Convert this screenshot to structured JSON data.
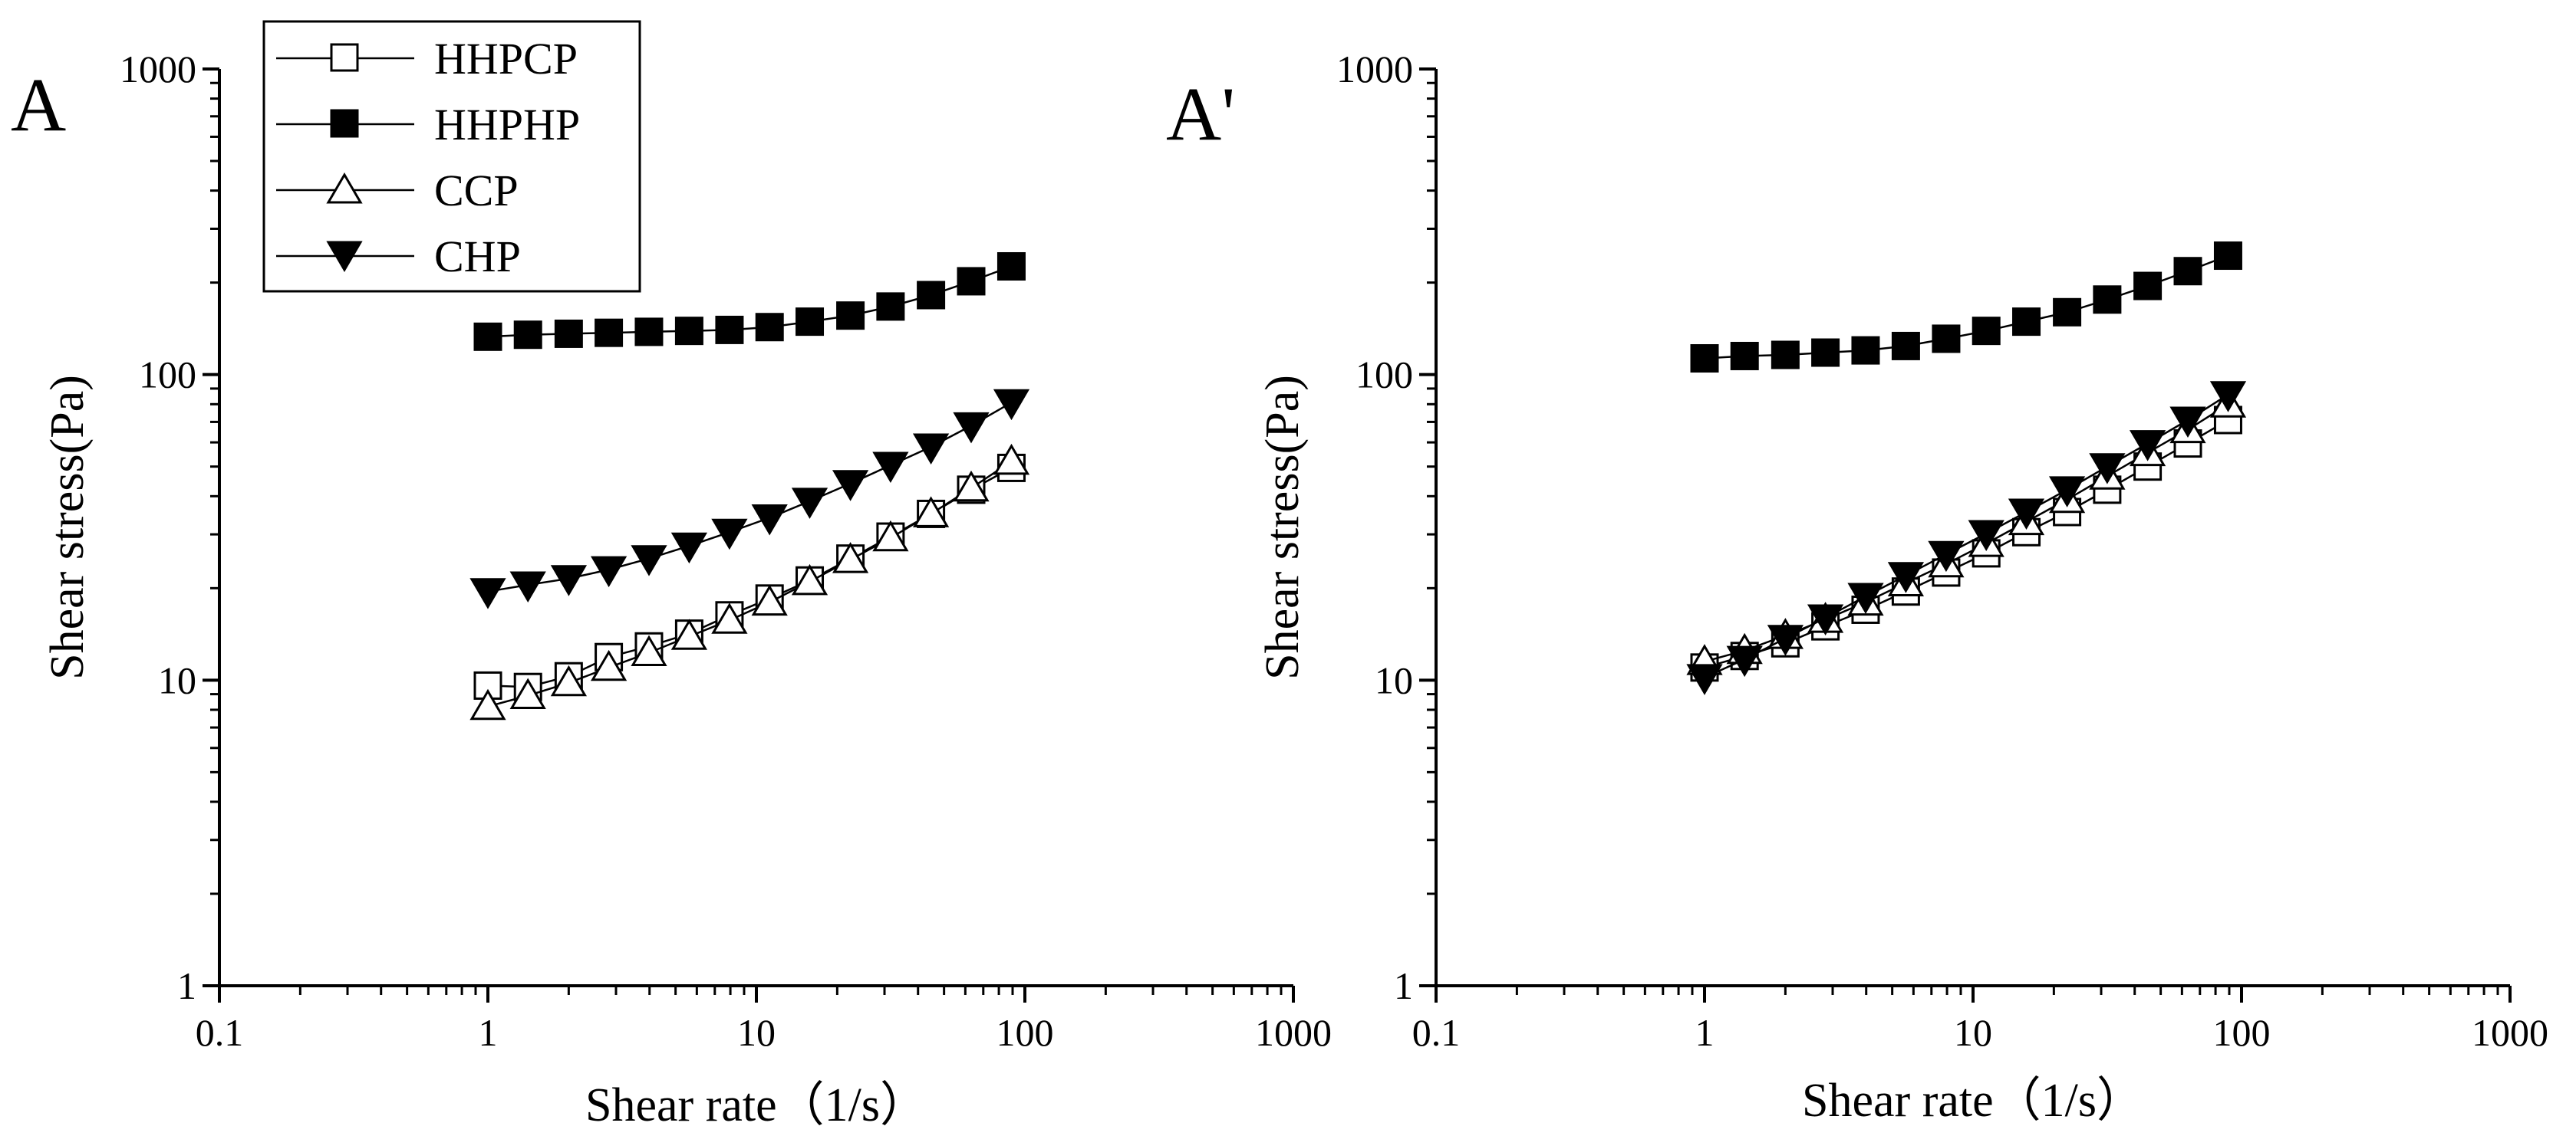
{
  "chart_data": [
    {
      "type": "scatter",
      "panel_label": "A",
      "xlabel": "Shear rate（1/s）",
      "ylabel": "Shear stress(Pa)",
      "xscale": "log",
      "yscale": "log",
      "xlim": [
        0.1,
        1000
      ],
      "ylim": [
        1,
        1000
      ],
      "xtick_labels": [
        "0.1",
        "1",
        "10",
        "100",
        "1000"
      ],
      "ytick_labels": [
        "1",
        "10",
        "100",
        "1000"
      ],
      "legend": {
        "placement": "top-left",
        "entries": [
          {
            "label": "HHPCP",
            "marker": "square-open"
          },
          {
            "label": "HHPHP",
            "marker": "square-filled"
          },
          {
            "label": "CCP",
            "marker": "triangle-up-open"
          },
          {
            "label": "CHP",
            "marker": "triangle-down-filled"
          }
        ]
      },
      "x": [
        1,
        1.41,
        2,
        2.82,
        3.98,
        5.62,
        7.94,
        11.2,
        15.8,
        22.4,
        31.6,
        44.7,
        63.1,
        89.1
      ],
      "series": [
        {
          "name": "HHPCP",
          "marker": "square-open",
          "values": [
            9.6,
            9.5,
            10.3,
            11.9,
            12.9,
            14.2,
            16.3,
            18.5,
            21.2,
            25.0,
            29.5,
            35.0,
            42.0,
            49.5
          ]
        },
        {
          "name": "HHPHP",
          "marker": "square-filled",
          "values": [
            133,
            135,
            136,
            137,
            138,
            139,
            140,
            143,
            149,
            156,
            167,
            182,
            202,
            226
          ]
        },
        {
          "name": "CCP",
          "marker": "triangle-up-open",
          "values": [
            8.2,
            8.9,
            9.8,
            11.0,
            12.3,
            13.9,
            15.7,
            18.0,
            21.0,
            24.8,
            29.2,
            35.0,
            42.5,
            52.0
          ]
        },
        {
          "name": "CHP",
          "marker": "triangle-down-filled",
          "values": [
            19.5,
            20.5,
            21.5,
            23.0,
            25.0,
            27.5,
            30.5,
            34.0,
            38.5,
            44.0,
            50.5,
            58.0,
            68.0,
            81.0
          ]
        }
      ]
    },
    {
      "type": "scatter",
      "panel_label": "A'",
      "xlabel": "Shear rate（1/s）",
      "ylabel": "Shear stress(Pa)",
      "xscale": "log",
      "yscale": "log",
      "xlim": [
        0.1,
        1000
      ],
      "ylim": [
        1,
        1000
      ],
      "xtick_labels": [
        "0.1",
        "1",
        "10",
        "100",
        "1000"
      ],
      "ytick_labels": [
        "1",
        "10",
        "100",
        "1000"
      ],
      "x": [
        1,
        1.41,
        2,
        2.82,
        3.98,
        5.62,
        7.94,
        11.2,
        15.8,
        22.4,
        31.6,
        44.7,
        63.1,
        89.1
      ],
      "series": [
        {
          "name": "HHPCP",
          "marker": "square-open",
          "values": [
            11.0,
            12.0,
            13.2,
            15.0,
            17.0,
            19.5,
            22.5,
            26.0,
            30.5,
            35.5,
            42.0,
            50.0,
            59.5,
            71.0
          ]
        },
        {
          "name": "HHPHP",
          "marker": "square-filled",
          "values": [
            113,
            115,
            116,
            118,
            120,
            124,
            131,
            139,
            149,
            160,
            176,
            195,
            218,
            245
          ]
        },
        {
          "name": "CCP",
          "marker": "triangle-up-open",
          "values": [
            11.5,
            12.5,
            14.0,
            15.8,
            18.0,
            20.8,
            24.0,
            28.0,
            33.0,
            39.0,
            46.5,
            55.5,
            66.0,
            80.0
          ]
        },
        {
          "name": "CHP",
          "marker": "triangle-down-filled",
          "values": [
            10.2,
            11.7,
            13.7,
            16.0,
            18.8,
            22.0,
            25.8,
            30.2,
            35.5,
            42.0,
            50.0,
            59.5,
            71.0,
            86.0
          ]
        }
      ]
    }
  ]
}
